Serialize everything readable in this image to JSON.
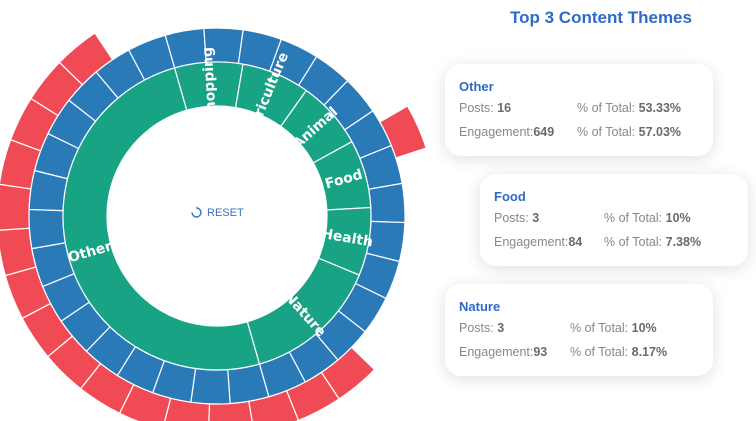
{
  "chart_data": {
    "type": "sunburst",
    "center_label": "RESET",
    "inner_segments": [
      {
        "label": "Shopping",
        "value": 1
      },
      {
        "label": "Agriculture",
        "value": 1
      },
      {
        "label": "Animal",
        "value": 1
      },
      {
        "label": "Food",
        "value": 1
      },
      {
        "label": "Health",
        "value": 1
      },
      {
        "label": "Nature",
        "value": 2
      },
      {
        "label": "Other",
        "value": 7
      }
    ],
    "colors": {
      "inner": "#17a384",
      "middle": "#2a7ab8",
      "outer": "#f04b55"
    }
  },
  "panel": {
    "title": "Top 3 Content Themes",
    "cards": [
      {
        "theme": "Other",
        "posts_label": "Posts:",
        "posts": "16",
        "engagement_label": "Engagement:",
        "engagement": "649",
        "pct_label": "% of Total:",
        "posts_pct": "53.33%",
        "engagement_pct": "57.03%"
      },
      {
        "theme": "Food",
        "posts_label": "Posts:",
        "posts": "3",
        "engagement_label": "Engagement:",
        "engagement": "84",
        "pct_label": "% of Total:",
        "posts_pct": "10%",
        "engagement_pct": "7.38%"
      },
      {
        "theme": "Nature",
        "posts_label": "Posts:",
        "posts": "3",
        "engagement_label": "Engagement:",
        "engagement": "93",
        "pct_label": "% of Total:",
        "posts_pct": "10%",
        "engagement_pct": "8.17%"
      }
    ]
  }
}
